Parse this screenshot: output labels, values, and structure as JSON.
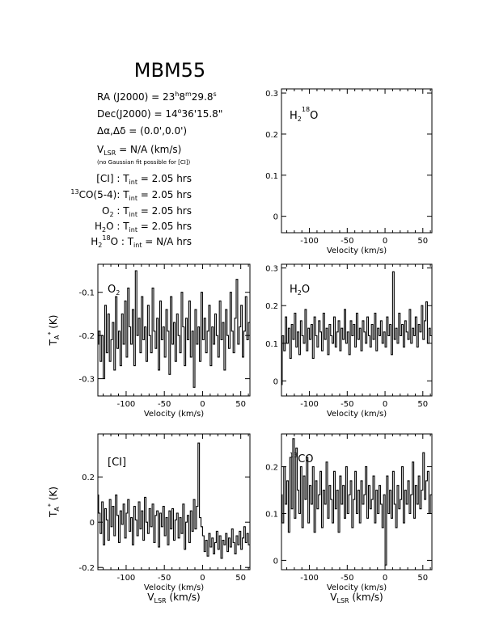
{
  "title": "MBM55",
  "info": {
    "ra_prefix": "RA (J2000)  =  23",
    "ra_h": "h",
    "ra_min": "8",
    "ra_m": "m",
    "ra_sec": "29.8",
    "ra_s": "s",
    "dec_prefix": "Dec(J2000)  =  14",
    "dec_deg": "o",
    "dec_rest": "36'15.8\"",
    "offset": "Δα,Δδ  =  (0.0',0.0')",
    "vlsr_v": "V",
    "vlsr_sub": "LSR",
    "vlsr_rest": " = N/A  (km/s)",
    "note": "(no Gaussian fit possible for [CI])",
    "tint": [
      {
        "pre_sup": "",
        "pre": "[CI] : T",
        "sub": "int",
        "post": " = 2.05 hrs"
      },
      {
        "pre_sup": "13",
        "pre": "CO(5-4): T",
        "sub": "int",
        "post": " = 2.05 hrs"
      },
      {
        "pre_sup": "",
        "pre": "O",
        "pre_sub": "2",
        "pre2": " : T",
        "sub": "int",
        "post": " = 2.05 hrs"
      },
      {
        "pre_sup": "",
        "pre": "H",
        "pre_sub": "2",
        "pre2": "O : T",
        "sub": "int",
        "post": " = 2.05 hrs"
      },
      {
        "pre_sup": "",
        "pre": "H",
        "pre_sub": "2",
        "mid_sup": "18",
        "pre2": "O : T",
        "sub": "int",
        "post": " = N/A hrs"
      }
    ]
  },
  "axis_text": {
    "xlabel": "Velocity (km/s)",
    "vlsr_v": "V",
    "vlsr_sub": "LSR",
    "vlsr_rest": " (km/s)",
    "ylabel_t": "T",
    "ylabel_sub": "A",
    "ylabel_sup": "*",
    "ylabel_rest": " (K)"
  },
  "chart_data": [
    {
      "id": "h2-18o",
      "type": "line",
      "panel_label": {
        "main": "H",
        "sub": "2",
        "sup": "18",
        "rest": "O"
      },
      "xlim": [
        -137,
        62
      ],
      "ylim": [
        -0.04,
        0.31
      ],
      "xticks": [
        -100,
        -50,
        0,
        50
      ],
      "yticks": [
        0,
        0.1,
        0.2,
        0.3
      ],
      "ytick_labels": [
        "0",
        "0.1",
        "0.2",
        "0.3"
      ],
      "xlabel": "Velocity (km/s)",
      "has_ylabel": false,
      "has_vlsr": false,
      "x": [],
      "y": []
    },
    {
      "id": "o2",
      "type": "line",
      "panel_label": {
        "main": "O",
        "sub": "2",
        "sup": "",
        "rest": ""
      },
      "xlim": [
        -137,
        62
      ],
      "ylim": [
        -0.34,
        -0.035
      ],
      "xticks": [
        -100,
        -50,
        0,
        50
      ],
      "yticks": [
        -0.1,
        -0.2,
        -0.3
      ],
      "ytick_labels": [
        "-0.1",
        "-0.2",
        "-0.3"
      ],
      "xlabel": "Velocity (km/s)",
      "has_ylabel": true,
      "has_vlsr": false,
      "x": [
        -137,
        -135,
        -133,
        -131,
        -129,
        -127,
        -125,
        -123,
        -121,
        -119,
        -117,
        -115,
        -113,
        -111,
        -109,
        -107,
        -105,
        -103,
        -101,
        -99,
        -97,
        -95,
        -93,
        -91,
        -89,
        -87,
        -85,
        -83,
        -81,
        -79,
        -77,
        -75,
        -73,
        -71,
        -69,
        -67,
        -65,
        -63,
        -61,
        -59,
        -57,
        -55,
        -53,
        -51,
        -49,
        -47,
        -45,
        -43,
        -41,
        -39,
        -37,
        -35,
        -33,
        -31,
        -29,
        -27,
        -25,
        -23,
        -21,
        -19,
        -17,
        -15,
        -13,
        -11,
        -9,
        -7,
        -5,
        -3,
        -1,
        1,
        3,
        5,
        7,
        9,
        11,
        13,
        15,
        17,
        19,
        21,
        23,
        25,
        27,
        29,
        31,
        33,
        35,
        37,
        39,
        41,
        43,
        45,
        47,
        49,
        51,
        53,
        55,
        57,
        59,
        61
      ],
      "y": [
        -0.22,
        -0.19,
        -0.26,
        -0.2,
        -0.3,
        -0.13,
        -0.24,
        -0.15,
        -0.26,
        -0.21,
        -0.17,
        -0.28,
        -0.11,
        -0.23,
        -0.19,
        -0.27,
        -0.15,
        -0.22,
        -0.12,
        -0.25,
        -0.09,
        -0.18,
        -0.22,
        -0.14,
        -0.27,
        -0.05,
        -0.2,
        -0.16,
        -0.24,
        -0.11,
        -0.21,
        -0.18,
        -0.26,
        -0.13,
        -0.2,
        -0.24,
        -0.09,
        -0.19,
        -0.23,
        -0.16,
        -0.28,
        -0.12,
        -0.21,
        -0.18,
        -0.25,
        -0.14,
        -0.19,
        -0.29,
        -0.11,
        -0.22,
        -0.17,
        -0.26,
        -0.15,
        -0.2,
        -0.24,
        -0.1,
        -0.18,
        -0.27,
        -0.16,
        -0.21,
        -0.12,
        -0.25,
        -0.19,
        -0.32,
        -0.14,
        -0.22,
        -0.18,
        -0.26,
        -0.1,
        -0.21,
        -0.16,
        -0.24,
        -0.19,
        -0.13,
        -0.27,
        -0.18,
        -0.22,
        -0.15,
        -0.2,
        -0.25,
        -0.12,
        -0.21,
        -0.17,
        -0.28,
        -0.14,
        -0.2,
        -0.23,
        -0.1,
        -0.19,
        -0.24,
        -0.16,
        -0.07,
        -0.22,
        -0.18,
        -0.13,
        -0.25,
        -0.19,
        -0.11,
        -0.21,
        -0.17
      ]
    },
    {
      "id": "h2o",
      "type": "line",
      "panel_label": {
        "main": "H",
        "sub": "2",
        "sup": "",
        "rest": "O"
      },
      "xlim": [
        -137,
        62
      ],
      "ylim": [
        -0.04,
        0.31
      ],
      "xticks": [
        -100,
        -50,
        0,
        50
      ],
      "yticks": [
        0,
        0.1,
        0.2,
        0.3
      ],
      "ytick_labels": [
        "0",
        "0.1",
        "0.2",
        "0.3"
      ],
      "xlabel": "Velocity (km/s)",
      "has_ylabel": false,
      "has_vlsr": false,
      "x": [
        -137,
        -135,
        -133,
        -131,
        -129,
        -127,
        -125,
        -123,
        -121,
        -119,
        -117,
        -115,
        -113,
        -111,
        -109,
        -107,
        -105,
        -103,
        -101,
        -99,
        -97,
        -95,
        -93,
        -91,
        -89,
        -87,
        -85,
        -83,
        -81,
        -79,
        -77,
        -75,
        -73,
        -71,
        -69,
        -67,
        -65,
        -63,
        -61,
        -59,
        -57,
        -55,
        -53,
        -51,
        -49,
        -47,
        -45,
        -43,
        -41,
        -39,
        -37,
        -35,
        -33,
        -31,
        -29,
        -27,
        -25,
        -23,
        -21,
        -19,
        -17,
        -15,
        -13,
        -11,
        -9,
        -7,
        -5,
        -3,
        -1,
        1,
        3,
        5,
        7,
        9,
        11,
        13,
        15,
        17,
        19,
        21,
        23,
        25,
        27,
        29,
        31,
        33,
        35,
        37,
        39,
        41,
        43,
        45,
        47,
        49,
        51,
        53,
        55,
        57,
        59,
        61
      ],
      "y": [
        -0.01,
        0.12,
        0.08,
        0.17,
        0.1,
        0.14,
        0.06,
        0.15,
        0.11,
        0.18,
        0.09,
        0.13,
        0.07,
        0.16,
        0.12,
        0.1,
        0.19,
        0.08,
        0.14,
        0.11,
        0.15,
        0.06,
        0.17,
        0.12,
        0.09,
        0.16,
        0.13,
        0.08,
        0.18,
        0.11,
        0.14,
        0.07,
        0.15,
        0.12,
        0.1,
        0.17,
        0.09,
        0.13,
        0.16,
        0.08,
        0.14,
        0.11,
        0.19,
        0.1,
        0.13,
        0.07,
        0.16,
        0.12,
        0.15,
        0.09,
        0.18,
        0.11,
        0.14,
        0.08,
        0.16,
        0.13,
        0.1,
        0.17,
        0.12,
        0.09,
        0.15,
        0.11,
        0.18,
        0.08,
        0.14,
        0.12,
        0.16,
        0.1,
        0.13,
        0.09,
        0.17,
        0.12,
        0.15,
        0.07,
        0.29,
        0.11,
        0.14,
        0.1,
        0.18,
        0.12,
        0.15,
        0.09,
        0.16,
        0.13,
        0.11,
        0.19,
        0.1,
        0.14,
        0.12,
        0.17,
        0.09,
        0.15,
        0.13,
        0.2,
        0.11,
        0.16,
        0.21,
        0.1,
        0.14,
        0.12
      ]
    },
    {
      "id": "ci",
      "type": "line",
      "panel_label": {
        "main": "[CI]",
        "sub": "",
        "sup": "",
        "rest": ""
      },
      "xlim": [
        -137,
        62
      ],
      "ylim": [
        -0.21,
        0.39
      ],
      "xticks": [
        -100,
        -50,
        0,
        50
      ],
      "yticks": [
        -0.2,
        0,
        0.2
      ],
      "ytick_labels": [
        "-0.2",
        "0",
        "0.2"
      ],
      "xlabel": "Velocity (km/s)",
      "has_ylabel": true,
      "has_vlsr": true,
      "x": [
        -137,
        -135,
        -133,
        -131,
        -129,
        -127,
        -125,
        -123,
        -121,
        -119,
        -117,
        -115,
        -113,
        -111,
        -109,
        -107,
        -105,
        -103,
        -101,
        -99,
        -97,
        -95,
        -93,
        -91,
        -89,
        -87,
        -85,
        -83,
        -81,
        -79,
        -77,
        -75,
        -73,
        -71,
        -69,
        -67,
        -65,
        -63,
        -61,
        -59,
        -57,
        -55,
        -53,
        -51,
        -49,
        -47,
        -45,
        -43,
        -41,
        -39,
        -37,
        -35,
        -33,
        -31,
        -29,
        -27,
        -25,
        -23,
        -21,
        -19,
        -17,
        -15,
        -13,
        -11,
        -9,
        -7,
        -5,
        -3,
        -1,
        1,
        3,
        5,
        7,
        9,
        11,
        13,
        15,
        17,
        19,
        21,
        23,
        25,
        27,
        29,
        31,
        33,
        35,
        37,
        39,
        41,
        43,
        45,
        47,
        49,
        51,
        53,
        55,
        57,
        59,
        61
      ],
      "y": [
        0.12,
        0.04,
        -0.05,
        0.09,
        -0.1,
        0.06,
        0.01,
        -0.08,
        0.1,
        -0.02,
        0.07,
        -0.06,
        0.12,
        0.03,
        -0.09,
        0.05,
        -0.01,
        0.08,
        -0.07,
        0.04,
        0.1,
        -0.04,
        0.02,
        -0.1,
        0.07,
        0.01,
        -0.06,
        0.09,
        -0.03,
        0.05,
        -0.08,
        0.11,
        0.0,
        -0.05,
        0.06,
        -0.02,
        0.08,
        -0.09,
        0.03,
        0.05,
        -0.11,
        0.04,
        -0.02,
        0.07,
        -0.06,
        0.02,
        -0.1,
        0.05,
        -0.03,
        0.06,
        -0.08,
        0.01,
        0.04,
        -0.07,
        0.02,
        -0.05,
        0.08,
        -0.12,
        0.0,
        0.03,
        -0.09,
        0.05,
        -0.04,
        0.1,
        -0.03,
        0.07,
        0.35,
        0.02,
        -0.02,
        -0.06,
        -0.13,
        -0.08,
        -0.15,
        -0.05,
        -0.11,
        -0.07,
        -0.14,
        -0.09,
        -0.04,
        -0.12,
        -0.06,
        -0.16,
        -0.08,
        -0.1,
        -0.05,
        -0.13,
        -0.07,
        -0.11,
        -0.03,
        -0.09,
        -0.14,
        -0.06,
        -0.1,
        -0.04,
        -0.12,
        -0.07,
        -0.02,
        -0.09,
        -0.05,
        -0.1
      ]
    },
    {
      "id": "13co",
      "type": "line",
      "panel_label": {
        "main": "",
        "sub": "",
        "sup": "13",
        "rest": "CO"
      },
      "xlim": [
        -137,
        62
      ],
      "ylim": [
        -0.02,
        0.27
      ],
      "xticks": [
        -100,
        -50,
        0,
        50
      ],
      "yticks": [
        0,
        0.1,
        0.2
      ],
      "ytick_labels": [
        "0",
        "0.1",
        "0.2"
      ],
      "xlabel": "Velocity (km/s)",
      "has_ylabel": false,
      "has_vlsr": true,
      "x": [
        -137,
        -135,
        -133,
        -131,
        -129,
        -127,
        -125,
        -123,
        -121,
        -119,
        -117,
        -115,
        -113,
        -111,
        -109,
        -107,
        -105,
        -103,
        -101,
        -99,
        -97,
        -95,
        -93,
        -91,
        -89,
        -87,
        -85,
        -83,
        -81,
        -79,
        -77,
        -75,
        -73,
        -71,
        -69,
        -67,
        -65,
        -63,
        -61,
        -59,
        -57,
        -55,
        -53,
        -51,
        -49,
        -47,
        -45,
        -43,
        -41,
        -39,
        -37,
        -35,
        -33,
        -31,
        -29,
        -27,
        -25,
        -23,
        -21,
        -19,
        -17,
        -15,
        -13,
        -11,
        -9,
        -7,
        -5,
        -3,
        -1,
        1,
        3,
        5,
        7,
        9,
        11,
        13,
        15,
        17,
        19,
        21,
        23,
        25,
        27,
        29,
        31,
        33,
        35,
        37,
        39,
        41,
        43,
        45,
        47,
        49,
        51,
        53,
        55,
        57,
        59,
        61
      ],
      "y": [
        0.14,
        0.08,
        0.2,
        0.12,
        0.17,
        0.06,
        0.22,
        0.11,
        0.26,
        0.09,
        0.24,
        0.15,
        0.1,
        0.2,
        0.07,
        0.18,
        0.13,
        0.22,
        0.08,
        0.16,
        0.12,
        0.2,
        0.06,
        0.17,
        0.11,
        0.14,
        0.19,
        0.07,
        0.15,
        0.12,
        0.21,
        0.09,
        0.16,
        0.13,
        0.08,
        0.19,
        0.11,
        0.15,
        0.06,
        0.18,
        0.12,
        0.16,
        0.09,
        0.2,
        0.1,
        0.14,
        0.17,
        0.07,
        0.13,
        0.19,
        0.1,
        0.15,
        0.08,
        0.17,
        0.12,
        0.14,
        0.2,
        0.09,
        0.16,
        0.11,
        0.13,
        0.18,
        0.08,
        0.15,
        0.1,
        0.16,
        0.12,
        0.07,
        0.14,
        -0.01,
        0.18,
        0.1,
        0.15,
        0.09,
        0.19,
        0.12,
        0.07,
        0.16,
        0.11,
        0.13,
        0.2,
        0.08,
        0.15,
        0.12,
        0.17,
        0.1,
        0.14,
        0.21,
        0.09,
        0.16,
        0.12,
        0.18,
        0.11,
        0.15,
        0.23,
        0.13,
        0.17,
        0.19,
        0.1,
        0.14
      ]
    }
  ]
}
